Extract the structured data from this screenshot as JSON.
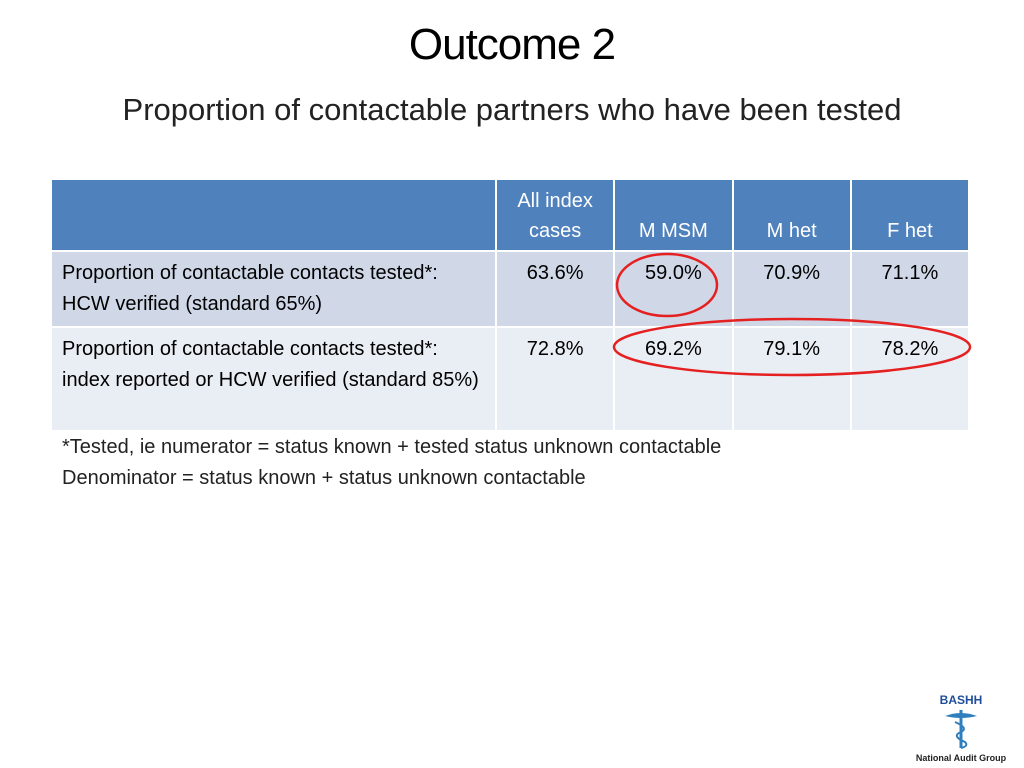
{
  "header": {
    "title": "Outcome 2",
    "subtitle": "Proportion of contactable partners who have been tested"
  },
  "table": {
    "columns": [
      "All index cases",
      "M MSM",
      "M het",
      "F het"
    ],
    "rows": [
      {
        "label": "Proportion of contactable contacts tested*: HCW verified (standard 65%)",
        "values": [
          "63.6%",
          "59.0%",
          "70.9%",
          "71.1%"
        ]
      },
      {
        "label": "Proportion of contactable contacts tested*: index reported or HCW verified (standard 85%)",
        "values": [
          "72.8%",
          "69.2%",
          "79.1%",
          "78.2%"
        ]
      }
    ]
  },
  "footnote": [
    "*Tested, ie numerator = status known + tested status unknown contactable",
    "Denominator = status known + status unknown contactable"
  ],
  "logo": {
    "name": "BASHH",
    "caption": "National Audit Group"
  }
}
